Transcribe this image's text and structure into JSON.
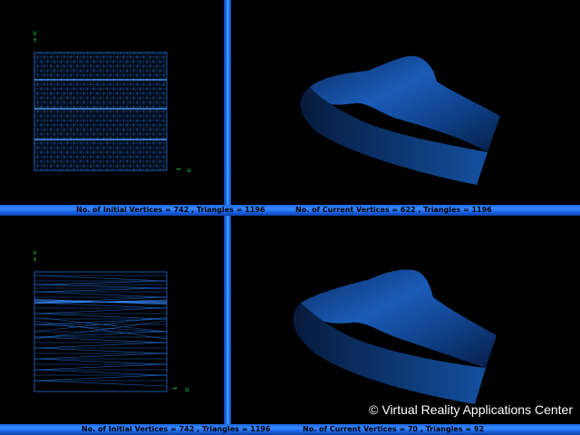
{
  "top": {
    "status": {
      "initial": "No. of Initial Vertices = 742 , Triangles = 1196",
      "current": "No. of Current Vertices = 622 , Triangles = 1196"
    }
  },
  "bottom": {
    "status": {
      "initial": "No. of Initial Vertices = 742 , Triangles = 1196",
      "current": "No. of Current Vertices = 70 , Triangles = 92"
    }
  },
  "axes": {
    "v": "v",
    "u": "u",
    "up_arrow": "↑",
    "right_arrow": "→"
  },
  "copyright": "© Virtual Reality Applications Center",
  "colors": {
    "mesh": "#1e6fd6",
    "surface": "#0d4ea6",
    "axis": "#1fbf3a",
    "bar": "#2a78ff"
  }
}
